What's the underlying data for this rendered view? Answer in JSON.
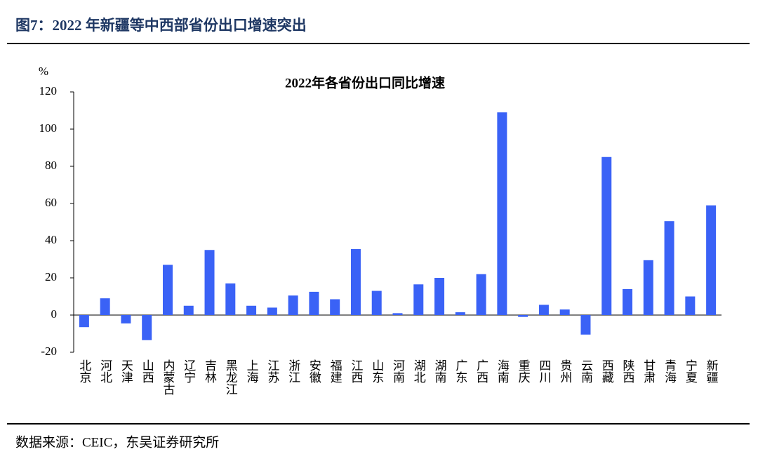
{
  "header": {
    "title": "图7：2022 年新疆等中西部省份出口增速突出"
  },
  "source": "数据来源：CEIC，东吴证券研究所",
  "chart_data": {
    "type": "bar",
    "title": "2022年各省份出口同比增速",
    "y_unit": "%",
    "categories": [
      "北京",
      "河北",
      "天津",
      "山西",
      "内蒙古",
      "辽宁",
      "吉林",
      "黑龙江",
      "上海",
      "江苏",
      "浙江",
      "安徽",
      "福建",
      "江西",
      "山东",
      "河南",
      "湖北",
      "湖南",
      "广东",
      "广西",
      "海南",
      "重庆",
      "四川",
      "贵州",
      "云南",
      "西藏",
      "陕西",
      "甘肃",
      "青海",
      "宁夏",
      "新疆"
    ],
    "values": [
      -6.5,
      9,
      -4.5,
      -13.5,
      27,
      5,
      35,
      17,
      5,
      4,
      10.5,
      12.5,
      8.5,
      35.5,
      13,
      1,
      16.5,
      20,
      1.5,
      22,
      109,
      -1,
      5.5,
      3,
      -10.5,
      85,
      14,
      29.5,
      50.5,
      10,
      59
    ],
    "color": "#3a62f6",
    "ylim": [
      -20,
      120
    ],
    "yticks": [
      -20,
      0,
      20,
      40,
      60,
      80,
      100,
      120
    ],
    "grid": false
  }
}
